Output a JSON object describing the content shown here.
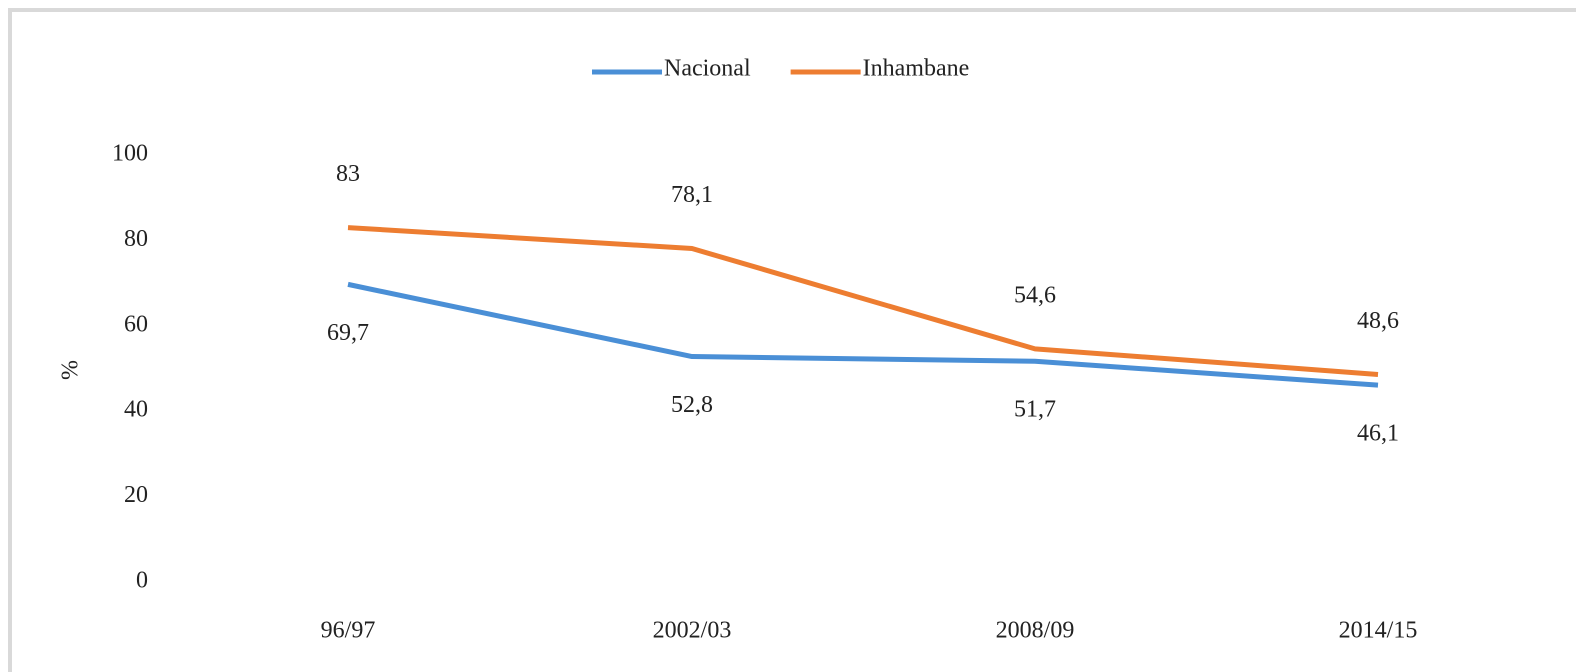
{
  "chart_data": {
    "type": "line",
    "y_label": "%",
    "categories": [
      "96/97",
      "2002/03",
      "2008/09",
      "2014/15"
    ],
    "series": [
      {
        "name": "Nacional",
        "color": "#4a8fd6",
        "values": [
          69.7,
          52.8,
          51.7,
          46.1
        ],
        "value_labels": [
          "69,7",
          "52,8",
          "51,7",
          "46,1"
        ]
      },
      {
        "name": "Inhambane",
        "color": "#ed7d31",
        "values": [
          83,
          78.1,
          54.6,
          48.6
        ],
        "value_labels": [
          "83",
          "78,1",
          "54,6",
          "48,6"
        ]
      }
    ],
    "ylim": [
      0,
      100
    ],
    "yticks": [
      0,
      20,
      40,
      60,
      80,
      100
    ],
    "grid": false,
    "legend": "top"
  }
}
